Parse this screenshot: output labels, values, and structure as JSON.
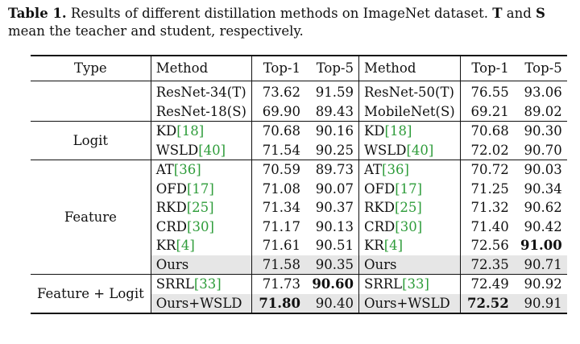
{
  "caption": {
    "label": "Table 1.",
    "text_1": " Results of different distillation methods on ImageNet dataset. ",
    "bold_t": "T",
    "text_2": " and ",
    "bold_s": "S",
    "text_3": " mean the teacher and student, respectively."
  },
  "headers": {
    "type": "Type",
    "method_a": "Method",
    "top1_a": "Top-1",
    "top5_a": "Top-5",
    "method_b": "Method",
    "top1_b": "Top-1",
    "top5_b": "Top-5"
  },
  "groups": {
    "baseline": {
      "type": "",
      "rows": [
        {
          "m1": "ResNet-34(T)",
          "t1a": "73.62",
          "t5a": "91.59",
          "m2": "ResNet-50(T)",
          "t1b": "76.55",
          "t5b": "93.06"
        },
        {
          "m1": "ResNet-18(S)",
          "t1a": "69.90",
          "t5a": "89.43",
          "m2": "MobileNet(S)",
          "t1b": "69.21",
          "t5b": "89.02"
        }
      ]
    },
    "logit": {
      "type": "Logit",
      "rows": [
        {
          "m1": "KD",
          "r1": "[18]",
          "t1a": "70.68",
          "t5a": "90.16",
          "m2": "KD",
          "r2": "[18]",
          "t1b": "70.68",
          "t5b": "90.30"
        },
        {
          "m1": "WSLD",
          "r1": "[40]",
          "t1a": "71.54",
          "t5a": "90.25",
          "m2": "WSLD",
          "r2": "[40]",
          "t1b": "72.02",
          "t5b": "90.70"
        }
      ]
    },
    "feature": {
      "type": "Feature",
      "rows": [
        {
          "m1": "AT",
          "r1": "[36]",
          "t1a": "70.59",
          "t5a": "89.73",
          "m2": "AT",
          "r2": "[36]",
          "t1b": "70.72",
          "t5b": "90.03"
        },
        {
          "m1": "OFD",
          "r1": "[17]",
          "t1a": "71.08",
          "t5a": "90.07",
          "m2": "OFD",
          "r2": "[17]",
          "t1b": "71.25",
          "t5b": "90.34"
        },
        {
          "m1": "RKD",
          "r1": "[25]",
          "t1a": "71.34",
          "t5a": "90.37",
          "m2": "RKD",
          "r2": "[25]",
          "t1b": "71.32",
          "t5b": "90.62"
        },
        {
          "m1": "CRD",
          "r1": "[30]",
          "t1a": "71.17",
          "t5a": "90.13",
          "m2": "CRD",
          "r2": "[30]",
          "t1b": "71.40",
          "t5b": "90.42"
        },
        {
          "m1": "KR",
          "r1": "[4]",
          "t1a": "71.61",
          "t5a": "90.51",
          "m2": "KR",
          "r2": "[4]",
          "t1b": "72.56",
          "t5b": "91.00"
        },
        {
          "m1": "Ours",
          "t1a": "71.58",
          "t5a": "90.35",
          "m2": "Ours",
          "t1b": "72.35",
          "t5b": "90.71"
        }
      ]
    },
    "feature_logit": {
      "type": "Feature + Logit",
      "rows": [
        {
          "m1": "SRRL",
          "r1": "[33]",
          "t1a": "71.73",
          "t5a": "90.60",
          "m2": "SRRL",
          "r2": "[33]",
          "t1b": "72.49",
          "t5b": "90.92"
        },
        {
          "m1": "Ours+WSLD",
          "t1a": "71.80",
          "t5a": "90.40",
          "m2": "Ours+WSLD",
          "t1b": "72.52",
          "t5b": "90.91"
        }
      ]
    }
  }
}
